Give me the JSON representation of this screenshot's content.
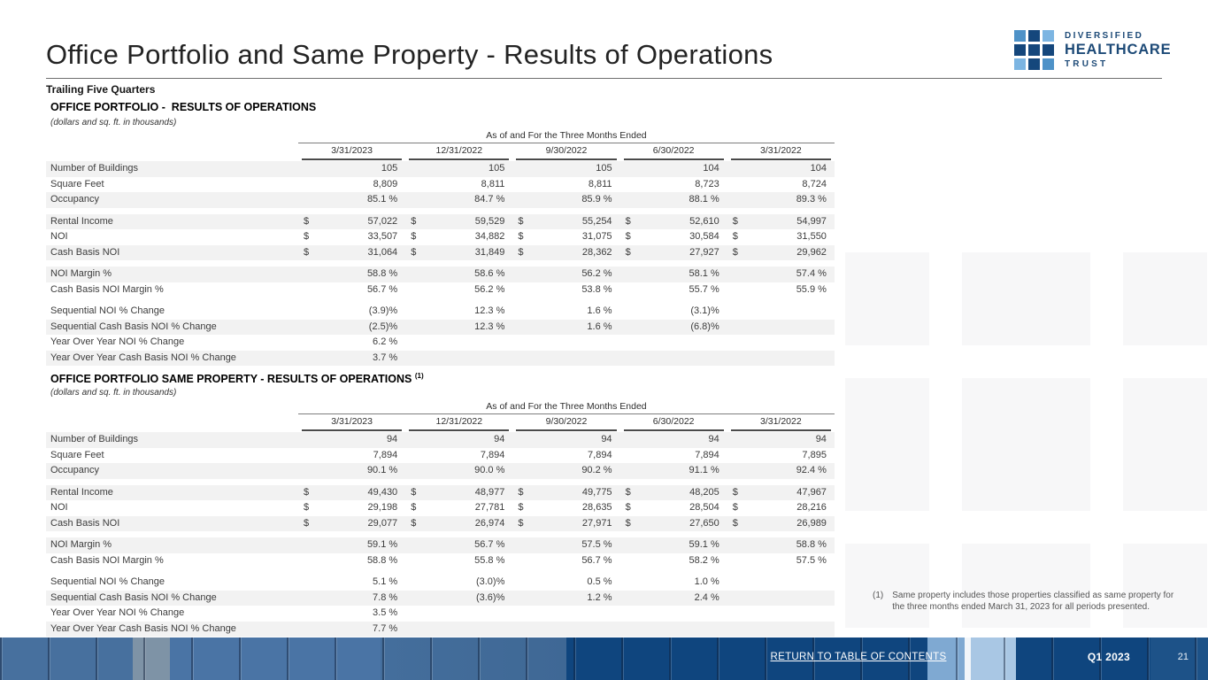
{
  "page": {
    "title": "Office Portfolio and Same Property - Results of Operations",
    "subtitle": "Trailing Five Quarters"
  },
  "logo": {
    "line1": "DIVERSIFIED",
    "line2": "HEALTHCARE",
    "line3": "TRUST",
    "colors": {
      "dark_blue": "#15477c",
      "light_blue": "#7cb5e2",
      "mid_blue": "#4e92c8",
      "text_navy": "#1d4a77"
    }
  },
  "tables": [
    {
      "heading": "OFFICE PORTFOLIO -  RESULTS OF OPERATIONS",
      "heading_sup": "",
      "note": "(dollars and sq. ft. in thousands)",
      "span_header": "As of and For the Three Months Ended",
      "columns": [
        "3/31/2023",
        "12/31/2022",
        "9/30/2022",
        "6/30/2022",
        "3/31/2022"
      ],
      "groups": [
        {
          "rows": [
            {
              "label": "Number of Buildings",
              "dollar": false,
              "shaded": true,
              "values": [
                "105",
                "105",
                "105",
                "104",
                "104"
              ]
            },
            {
              "label": "Square Feet",
              "dollar": false,
              "shaded": false,
              "values": [
                "8,809",
                "8,811",
                "8,811",
                "8,723",
                "8,724"
              ]
            },
            {
              "label": "Occupancy",
              "dollar": false,
              "shaded": true,
              "values": [
                "85.1 %",
                "84.7 %",
                "85.9 %",
                "88.1 %",
                "89.3 %"
              ]
            }
          ]
        },
        {
          "rows": [
            {
              "label": "Rental Income",
              "dollar": true,
              "shaded": true,
              "values": [
                "57,022",
                "59,529",
                "55,254",
                "52,610",
                "54,997"
              ]
            },
            {
              "label": "NOI",
              "dollar": true,
              "shaded": false,
              "values": [
                "33,507",
                "34,882",
                "31,075",
                "30,584",
                "31,550"
              ]
            },
            {
              "label": "Cash Basis NOI",
              "dollar": true,
              "shaded": true,
              "values": [
                "31,064",
                "31,849",
                "28,362",
                "27,927",
                "29,962"
              ]
            }
          ]
        },
        {
          "rows": [
            {
              "label": "NOI Margin %",
              "dollar": false,
              "shaded": true,
              "values": [
                "58.8 %",
                "58.6 %",
                "56.2 %",
                "58.1 %",
                "57.4 %"
              ]
            },
            {
              "label": "Cash Basis NOI Margin %",
              "dollar": false,
              "shaded": false,
              "values": [
                "56.7 %",
                "56.2 %",
                "53.8 %",
                "55.7 %",
                "55.9 %"
              ]
            }
          ]
        },
        {
          "rows": [
            {
              "label": "Sequential NOI % Change",
              "dollar": false,
              "shaded": false,
              "values": [
                "(3.9)%",
                "12.3 %",
                "1.6 %",
                "(3.1)%",
                ""
              ]
            },
            {
              "label": "Sequential Cash Basis NOI % Change",
              "dollar": false,
              "shaded": true,
              "values": [
                "(2.5)%",
                "12.3 %",
                "1.6 %",
                "(6.8)%",
                ""
              ]
            },
            {
              "label": "Year Over Year NOI % Change",
              "dollar": false,
              "shaded": false,
              "values": [
                "6.2 %",
                "",
                "",
                "",
                ""
              ]
            },
            {
              "label": "Year Over Year Cash Basis NOI % Change",
              "dollar": false,
              "shaded": true,
              "values": [
                "3.7 %",
                "",
                "",
                "",
                ""
              ]
            }
          ]
        }
      ]
    },
    {
      "heading": "OFFICE PORTFOLIO SAME PROPERTY - RESULTS OF OPERATIONS ",
      "heading_sup": "(1)",
      "note": "(dollars and sq. ft. in thousands)",
      "span_header": "As of and For the Three Months Ended",
      "columns": [
        "3/31/2023",
        "12/31/2022",
        "9/30/2022",
        "6/30/2022",
        "3/31/2022"
      ],
      "groups": [
        {
          "rows": [
            {
              "label": "Number of Buildings",
              "dollar": false,
              "shaded": true,
              "values": [
                "94",
                "94",
                "94",
                "94",
                "94"
              ]
            },
            {
              "label": "Square Feet",
              "dollar": false,
              "shaded": false,
              "values": [
                "7,894",
                "7,894",
                "7,894",
                "7,894",
                "7,895"
              ]
            },
            {
              "label": "Occupancy",
              "dollar": false,
              "shaded": true,
              "values": [
                "90.1 %",
                "90.0 %",
                "90.2 %",
                "91.1 %",
                "92.4 %"
              ]
            }
          ]
        },
        {
          "rows": [
            {
              "label": "Rental Income",
              "dollar": true,
              "shaded": true,
              "values": [
                "49,430",
                "48,977",
                "49,775",
                "48,205",
                "47,967"
              ]
            },
            {
              "label": "NOI",
              "dollar": true,
              "shaded": false,
              "values": [
                "29,198",
                "27,781",
                "28,635",
                "28,504",
                "28,216"
              ]
            },
            {
              "label": "Cash Basis NOI",
              "dollar": true,
              "shaded": true,
              "values": [
                "29,077",
                "26,974",
                "27,971",
                "27,650",
                "26,989"
              ]
            }
          ]
        },
        {
          "rows": [
            {
              "label": "NOI Margin %",
              "dollar": false,
              "shaded": true,
              "values": [
                "59.1 %",
                "56.7 %",
                "57.5 %",
                "59.1 %",
                "58.8 %"
              ]
            },
            {
              "label": "Cash Basis NOI Margin %",
              "dollar": false,
              "shaded": false,
              "values": [
                "58.8 %",
                "55.8 %",
                "56.7 %",
                "58.2 %",
                "57.5 %"
              ]
            }
          ]
        },
        {
          "rows": [
            {
              "label": "Sequential NOI % Change",
              "dollar": false,
              "shaded": false,
              "values": [
                "5.1 %",
                "(3.0)%",
                "0.5 %",
                "1.0 %",
                ""
              ]
            },
            {
              "label": "Sequential Cash Basis NOI % Change",
              "dollar": false,
              "shaded": true,
              "values": [
                "7.8 %",
                "(3.6)%",
                "1.2 %",
                "2.4 %",
                ""
              ]
            },
            {
              "label": "Year Over Year NOI % Change",
              "dollar": false,
              "shaded": false,
              "values": [
                "3.5 %",
                "",
                "",
                "",
                ""
              ]
            },
            {
              "label": "Year Over Year Cash Basis NOI % Change",
              "dollar": false,
              "shaded": true,
              "values": [
                "7.7 %",
                "",
                "",
                "",
                ""
              ]
            }
          ]
        }
      ]
    }
  ],
  "footnote": {
    "marker": "(1)",
    "text": "Same property includes those properties classified as same property for the three months ended March 31, 2023 for all periods presented."
  },
  "footer": {
    "link": "RETURN TO TABLE OF CONTENTS",
    "quarter": "Q1 2023",
    "page": "21"
  }
}
